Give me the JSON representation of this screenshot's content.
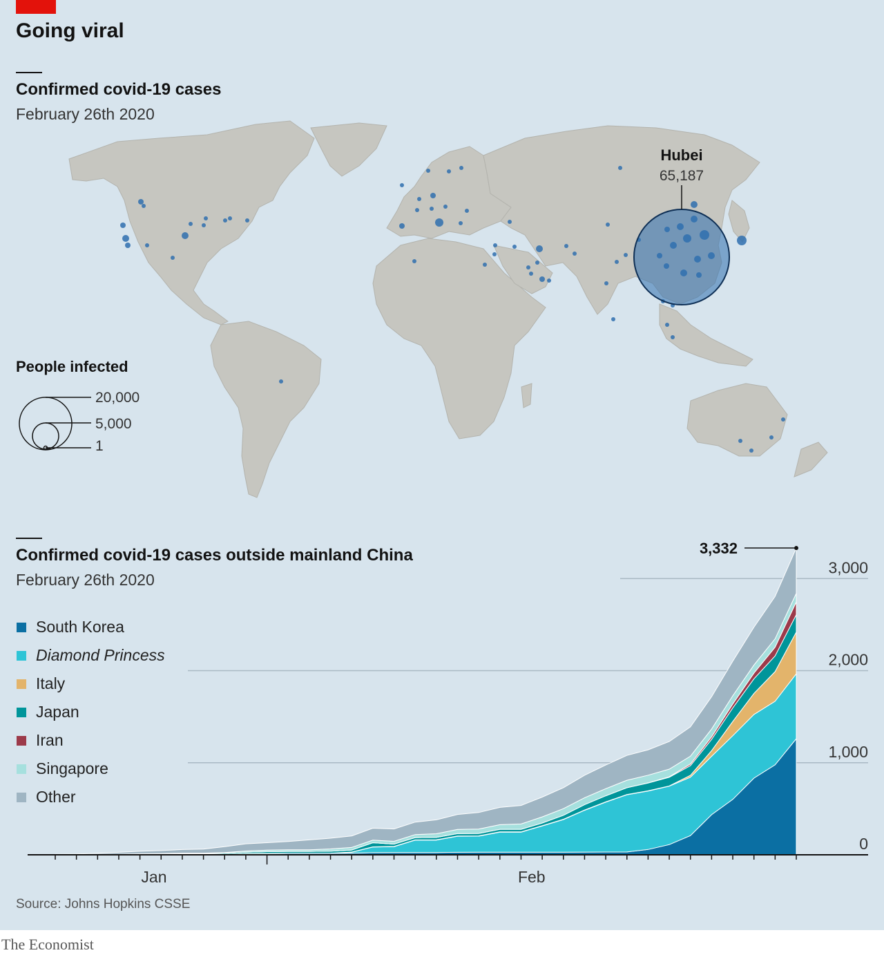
{
  "header": {
    "title": "Going viral"
  },
  "map_section": {
    "subtitle": "Confirmed covid-19 cases",
    "date": "February 26th 2020",
    "callout": {
      "name": "Hubei",
      "value": "65,187"
    },
    "size_legend": {
      "title": "People infected",
      "labels": [
        "20,000",
        "5,000",
        "1"
      ]
    }
  },
  "chart_section": {
    "subtitle": "Confirmed covid-19 cases outside mainland China",
    "date": "February 26th 2020",
    "total_label": "3,332"
  },
  "source": "Source: Johns Hopkins CSSE",
  "brand": "The Economist",
  "colors": {
    "background": "#d7e4ed",
    "land": "#c6c6c0",
    "bubble": "#2f6fae",
    "accent_red": "#e3120b"
  },
  "chart_data": {
    "type": "area",
    "stacked": true,
    "x": [
      "Jan 22",
      "Jan 23",
      "Jan 24",
      "Jan 25",
      "Jan 26",
      "Jan 27",
      "Jan 28",
      "Jan 29",
      "Jan 30",
      "Jan 31",
      "Feb 1",
      "Feb 2",
      "Feb 3",
      "Feb 4",
      "Feb 5",
      "Feb 6",
      "Feb 7",
      "Feb 8",
      "Feb 9",
      "Feb 10",
      "Feb 11",
      "Feb 12",
      "Feb 13",
      "Feb 14",
      "Feb 15",
      "Feb 16",
      "Feb 17",
      "Feb 18",
      "Feb 19",
      "Feb 20",
      "Feb 21",
      "Feb 22",
      "Feb 23",
      "Feb 24",
      "Feb 25",
      "Feb 26"
    ],
    "x_tick_labels": [
      "Jan",
      "Feb"
    ],
    "ylim": [
      0,
      3400
    ],
    "y_ticks": [
      0,
      1000,
      2000,
      3000
    ],
    "y_tick_labels": [
      "0",
      "1,000",
      "2,000",
      "3,000"
    ],
    "annotation": {
      "label": "3,332",
      "value": 3332
    },
    "legend": "left",
    "series": [
      {
        "name": "South Korea",
        "color": "#0b6fa3",
        "values": [
          1,
          1,
          2,
          2,
          3,
          4,
          4,
          4,
          4,
          11,
          12,
          15,
          15,
          16,
          18,
          23,
          24,
          24,
          25,
          27,
          28,
          28,
          28,
          28,
          28,
          29,
          30,
          31,
          58,
          111,
          209,
          436,
          602,
          833,
          977,
          1261
        ]
      },
      {
        "name": "Diamond Princess",
        "italic": true,
        "values": [
          0,
          0,
          0,
          0,
          0,
          0,
          0,
          0,
          0,
          0,
          0,
          0,
          0,
          0,
          10,
          61,
          64,
          135,
          135,
          175,
          175,
          218,
          218,
          285,
          355,
          454,
          542,
          621,
          634,
          634,
          634,
          634,
          691,
          691,
          691,
          705
        ],
        "color": "#2ec4d6"
      },
      {
        "name": "Italy",
        "color": "#e3b46b",
        "values": [
          0,
          0,
          0,
          0,
          0,
          0,
          0,
          0,
          0,
          2,
          2,
          2,
          2,
          2,
          2,
          2,
          3,
          3,
          3,
          3,
          3,
          3,
          3,
          3,
          3,
          3,
          3,
          3,
          3,
          3,
          20,
          62,
          155,
          229,
          322,
          453
        ]
      },
      {
        "name": "Japan",
        "color": "#00959a",
        "values": [
          2,
          1,
          2,
          2,
          4,
          4,
          7,
          7,
          11,
          15,
          20,
          20,
          20,
          22,
          22,
          45,
          25,
          25,
          26,
          26,
          26,
          28,
          28,
          29,
          43,
          59,
          66,
          74,
          84,
          94,
          105,
          122,
          147,
          159,
          170,
          189
        ]
      },
      {
        "name": "Iran",
        "color": "#9c3a4a",
        "values": [
          0,
          0,
          0,
          0,
          0,
          0,
          0,
          0,
          0,
          0,
          0,
          0,
          0,
          0,
          0,
          0,
          0,
          0,
          0,
          0,
          0,
          0,
          0,
          0,
          0,
          0,
          0,
          0,
          2,
          5,
          18,
          28,
          43,
          61,
          95,
          139
        ]
      },
      {
        "name": "Singapore",
        "color": "#a6e0de",
        "values": [
          0,
          0,
          1,
          3,
          4,
          5,
          7,
          7,
          10,
          13,
          16,
          18,
          18,
          24,
          28,
          28,
          30,
          33,
          40,
          45,
          47,
          50,
          58,
          67,
          72,
          75,
          77,
          81,
          84,
          84,
          85,
          85,
          89,
          89,
          91,
          93
        ]
      },
      {
        "name": "Other",
        "color": "#9fb5c3",
        "values": [
          3,
          6,
          12,
          20,
          27,
          33,
          39,
          44,
          63,
          78,
          81,
          90,
          107,
          116,
          125,
          130,
          135,
          135,
          151,
          162,
          180,
          188,
          201,
          215,
          228,
          244,
          257,
          269,
          275,
          299,
          318,
          350,
          375,
          410,
          460,
          492
        ]
      }
    ]
  }
}
